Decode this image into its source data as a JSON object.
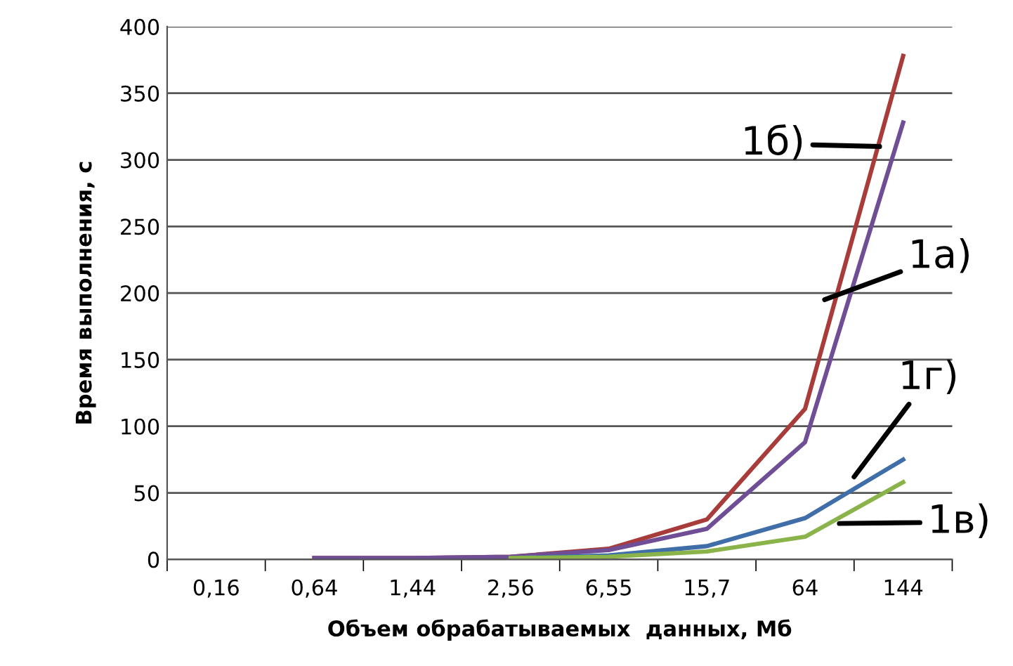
{
  "chart_data": {
    "type": "line",
    "xlabel": "Объем обрабатываемых  данных, Мб",
    "ylabel": "Время выполнения, с",
    "categories": [
      "0,16",
      "0,64",
      "1,44",
      "2,56",
      "6,55",
      "15,7",
      "64",
      "144"
    ],
    "series": [
      {
        "name": "1б)",
        "color": "#a83c3a",
        "values": [
          null,
          1,
          1,
          2,
          8,
          30,
          113,
          378
        ]
      },
      {
        "name": "1а)",
        "color": "#6f4e96",
        "values": [
          null,
          1,
          1,
          2,
          7,
          23,
          88,
          328
        ]
      },
      {
        "name": "1г)",
        "color": "#3f6ea8",
        "values": [
          null,
          null,
          null,
          1,
          3,
          10,
          31,
          75
        ]
      },
      {
        "name": "1в)",
        "color": "#8ab34a",
        "values": [
          null,
          null,
          null,
          1,
          2,
          6,
          17,
          58
        ]
      }
    ],
    "ylim": [
      0,
      400
    ],
    "yticks": [
      0,
      50,
      100,
      150,
      200,
      250,
      300,
      350,
      400
    ],
    "grid": "y",
    "legend": false,
    "marker": "none",
    "line_style": "solid"
  }
}
